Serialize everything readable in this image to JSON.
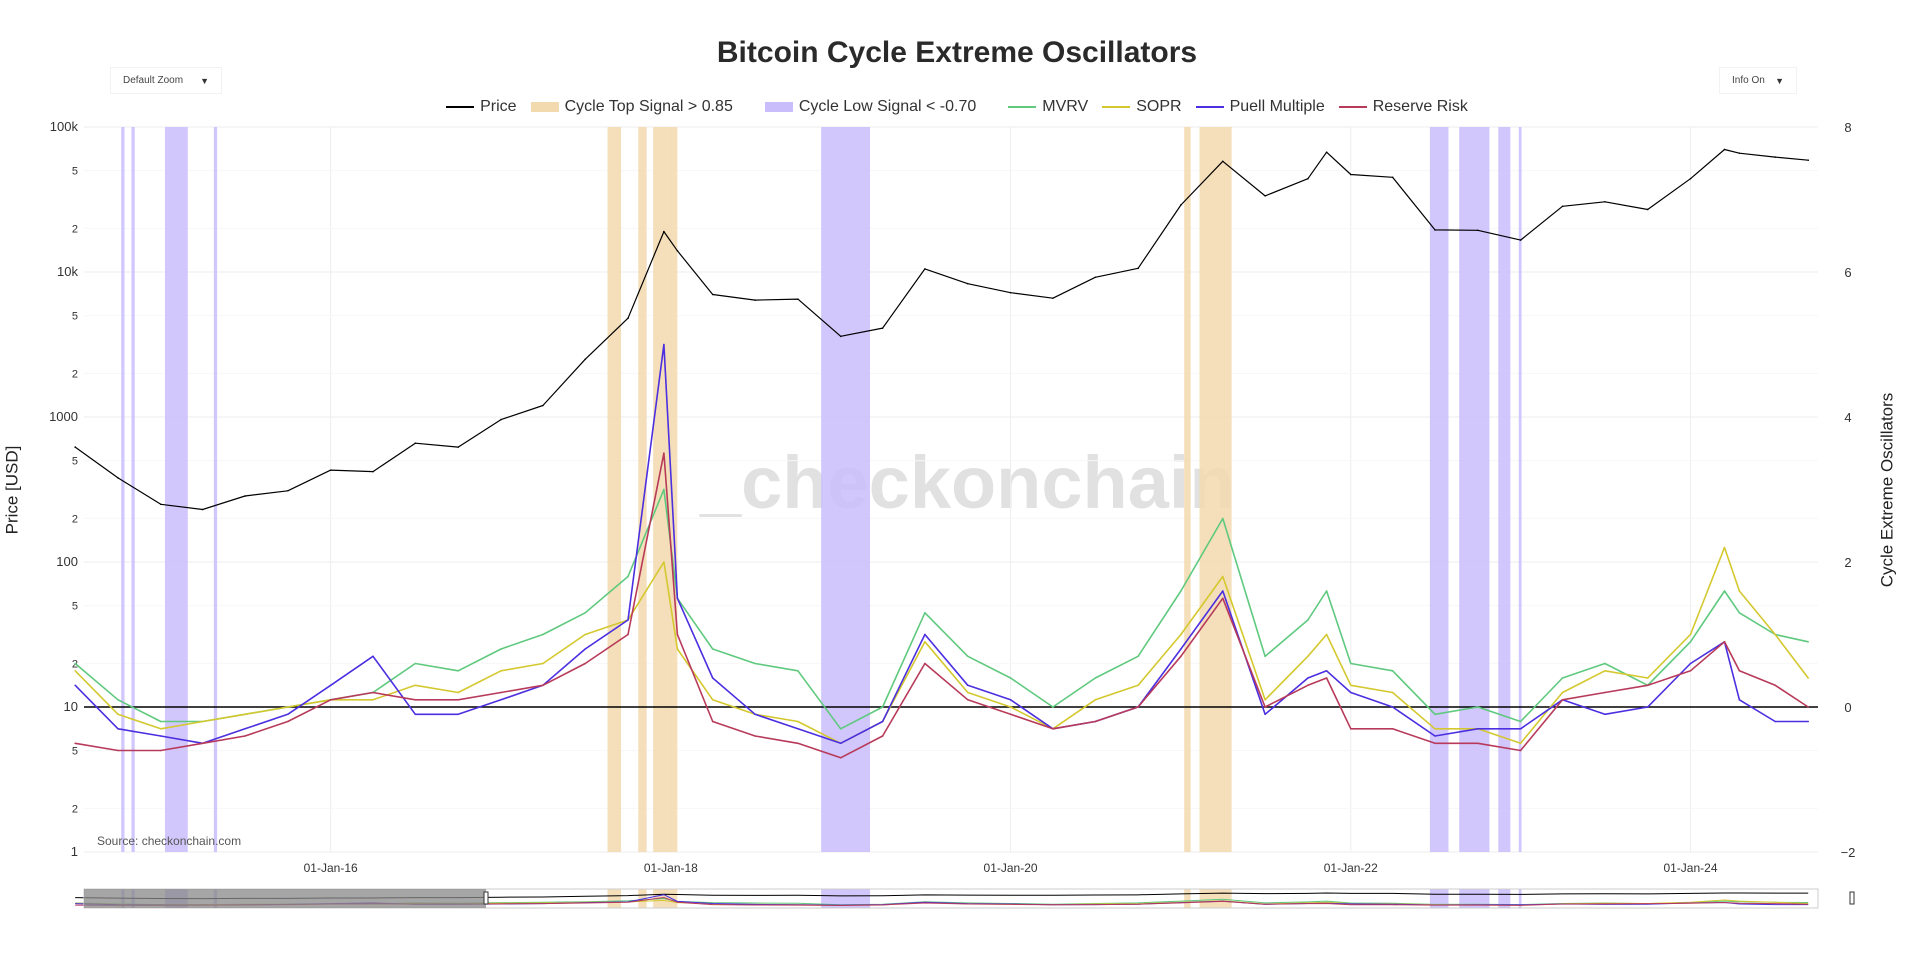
{
  "controls": {
    "zoom_label": "Default Zoom",
    "info_label": "Info On",
    "arrow": "▼"
  },
  "source": "Source: checkonchain.com",
  "watermark": "_checkonchain",
  "chart_data": {
    "type": "line",
    "title": "Bitcoin Cycle Extreme Oscillators",
    "ylabel": "Price [USD]",
    "y2label": "Cycle Extreme Oscillators",
    "yscale": "log",
    "ylim": [
      1,
      100000
    ],
    "y2lim": [
      -2,
      8
    ],
    "xlim": [
      "2014-07-20",
      "2024-10-01"
    ],
    "x_ticks": [
      "01-Jan-16",
      "01-Jan-18",
      "01-Jan-20",
      "01-Jan-22",
      "01-Jan-24"
    ],
    "x_tick_dates": [
      "2016-01-01",
      "2018-01-01",
      "2020-01-01",
      "2022-01-01",
      "2024-01-01"
    ],
    "y_ticks": [
      {
        "v": 1,
        "l": "1"
      },
      {
        "v": 2,
        "l": "2"
      },
      {
        "v": 5,
        "l": "5"
      },
      {
        "v": 10,
        "l": "10"
      },
      {
        "v": 20,
        "l": "2"
      },
      {
        "v": 50,
        "l": "5"
      },
      {
        "v": 100,
        "l": "100"
      },
      {
        "v": 200,
        "l": "2"
      },
      {
        "v": 500,
        "l": "5"
      },
      {
        "v": 1000,
        "l": "1000"
      },
      {
        "v": 2000,
        "l": "2"
      },
      {
        "v": 5000,
        "l": "5"
      },
      {
        "v": 10000,
        "l": "10k"
      },
      {
        "v": 20000,
        "l": "2"
      },
      {
        "v": 50000,
        "l": "5"
      },
      {
        "v": 100000,
        "l": "100k"
      }
    ],
    "y2_ticks": [
      "8",
      "6",
      "4",
      "2",
      "0",
      "−2"
    ],
    "y2_tick_values": [
      8,
      6,
      4,
      2,
      0,
      -2
    ],
    "grid": true,
    "legend": "top-center",
    "x": [
      "2014-07-01",
      "2014-10-01",
      "2015-01-01",
      "2015-04-01",
      "2015-07-01",
      "2015-10-01",
      "2016-01-01",
      "2016-04-01",
      "2016-07-01",
      "2016-10-01",
      "2017-01-01",
      "2017-04-01",
      "2017-07-01",
      "2017-10-01",
      "2017-12-17",
      "2018-01-15",
      "2018-04-01",
      "2018-07-01",
      "2018-10-01",
      "2019-01-01",
      "2019-04-01",
      "2019-07-01",
      "2019-10-01",
      "2020-01-01",
      "2020-04-01",
      "2020-07-01",
      "2020-10-01",
      "2021-01-01",
      "2021-04-01",
      "2021-07-01",
      "2021-10-01",
      "2021-11-10",
      "2022-01-01",
      "2022-04-01",
      "2022-07-01",
      "2022-10-01",
      "2023-01-01",
      "2023-04-01",
      "2023-07-01",
      "2023-10-01",
      "2024-01-01",
      "2024-03-14",
      "2024-04-15",
      "2024-07-01",
      "2024-09-10"
    ],
    "series": [
      {
        "name": "Price",
        "axis": "left",
        "color": "#000000",
        "values": [
          620,
          380,
          250,
          230,
          285,
          310,
          430,
          420,
          660,
          620,
          960,
          1200,
          2500,
          4800,
          19000,
          14000,
          7000,
          6400,
          6500,
          3600,
          4100,
          10500,
          8300,
          7200,
          6600,
          9200,
          10600,
          29000,
          58000,
          33500,
          44000,
          67000,
          47000,
          45000,
          19500,
          19400,
          16600,
          28400,
          30500,
          27000,
          44000,
          70000,
          66000,
          62000,
          59000
        ]
      },
      {
        "name": "MVRV",
        "axis": "right",
        "color": "#5fc97e",
        "values": [
          0.6,
          0.1,
          -0.2,
          -0.2,
          -0.1,
          0.0,
          0.1,
          0.2,
          0.6,
          0.5,
          0.8,
          1.0,
          1.3,
          1.8,
          3.0,
          1.5,
          0.8,
          0.6,
          0.5,
          -0.3,
          0.0,
          1.3,
          0.7,
          0.4,
          0.0,
          0.4,
          0.7,
          1.6,
          2.6,
          0.7,
          1.2,
          1.6,
          0.6,
          0.5,
          -0.1,
          0.0,
          -0.2,
          0.4,
          0.6,
          0.3,
          0.9,
          1.6,
          1.3,
          1.0,
          0.9
        ]
      },
      {
        "name": "SOPR",
        "axis": "right",
        "color": "#d4c82e",
        "values": [
          0.5,
          -0.1,
          -0.3,
          -0.2,
          -0.1,
          0.0,
          0.1,
          0.1,
          0.3,
          0.2,
          0.5,
          0.6,
          1.0,
          1.2,
          2.0,
          0.8,
          0.1,
          -0.1,
          -0.2,
          -0.5,
          -0.2,
          0.9,
          0.2,
          0.0,
          -0.3,
          0.1,
          0.3,
          1.0,
          1.8,
          0.1,
          0.7,
          1.0,
          0.3,
          0.2,
          -0.3,
          -0.3,
          -0.5,
          0.2,
          0.5,
          0.4,
          1.0,
          2.2,
          1.6,
          1.0,
          0.4
        ]
      },
      {
        "name": "Puell Multiple",
        "axis": "right",
        "color": "#4b2fe0",
        "values": [
          0.3,
          -0.3,
          -0.4,
          -0.5,
          -0.3,
          -0.1,
          0.3,
          0.7,
          -0.1,
          -0.1,
          0.1,
          0.3,
          0.8,
          1.2,
          5.0,
          1.5,
          0.4,
          -0.1,
          -0.3,
          -0.5,
          -0.2,
          1.0,
          0.3,
          0.1,
          -0.3,
          -0.2,
          0.0,
          0.8,
          1.6,
          -0.1,
          0.4,
          0.5,
          0.2,
          0.0,
          -0.4,
          -0.3,
          -0.3,
          0.1,
          -0.1,
          0.0,
          0.6,
          0.9,
          0.1,
          -0.2,
          -0.2
        ]
      },
      {
        "name": "Reserve Risk",
        "axis": "right",
        "color": "#b83a5a",
        "values": [
          -0.5,
          -0.6,
          -0.6,
          -0.5,
          -0.4,
          -0.2,
          0.1,
          0.2,
          0.1,
          0.1,
          0.2,
          0.3,
          0.6,
          1.0,
          3.5,
          1.0,
          -0.2,
          -0.4,
          -0.5,
          -0.7,
          -0.4,
          0.6,
          0.1,
          -0.1,
          -0.3,
          -0.2,
          0.0,
          0.7,
          1.5,
          0.0,
          0.3,
          0.4,
          -0.3,
          -0.3,
          -0.5,
          -0.5,
          -0.6,
          0.1,
          0.2,
          0.3,
          0.5,
          0.9,
          0.5,
          0.3,
          0.0
        ]
      }
    ],
    "bands": [
      {
        "name": "Cycle Top Signal > 0.85",
        "color": "#f2d9ae",
        "ranges": [
          [
            "2017-08-18",
            "2017-09-16"
          ],
          [
            "2017-10-23",
            "2017-11-10"
          ],
          [
            "2017-11-24",
            "2018-01-15"
          ],
          [
            "2021-01-08",
            "2021-01-22"
          ],
          [
            "2021-02-10",
            "2021-04-20"
          ]
        ]
      },
      {
        "name": "Cycle Low Signal < -0.70",
        "color": "#c9bdfb",
        "ranges": [
          [
            "2014-10-08",
            "2014-10-15"
          ],
          [
            "2014-10-30",
            "2014-11-06"
          ],
          [
            "2015-01-10",
            "2015-02-28"
          ],
          [
            "2015-04-25",
            "2015-05-02"
          ],
          [
            "2018-11-20",
            "2019-03-05"
          ],
          [
            "2022-06-20",
            "2022-07-30"
          ],
          [
            "2022-08-22",
            "2022-10-26"
          ],
          [
            "2022-11-14",
            "2022-12-10"
          ],
          [
            "2022-12-28",
            "2023-01-03"
          ]
        ]
      }
    ],
    "legend_order": [
      "Price",
      "Cycle Top Signal > 0.85",
      "Cycle Low Signal < -0.70",
      "MVRV",
      "SOPR",
      "Puell Multiple",
      "Reserve Risk"
    ],
    "zero_line": 0
  }
}
